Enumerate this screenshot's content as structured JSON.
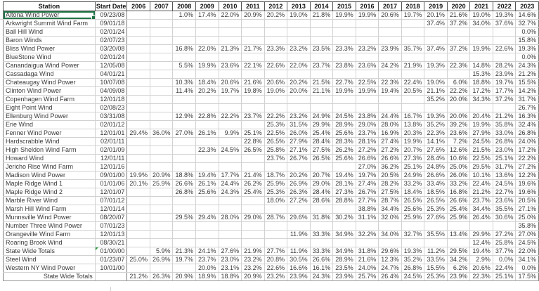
{
  "colors": {
    "selection_green": "#217346",
    "error_indicator_green": "#2e9e44",
    "grid_light": "#d2d2d2",
    "grid_dark": "#555555"
  },
  "table": {
    "columns": [
      "Station",
      "Start Date",
      "2006",
      "2007",
      "2008",
      "2009",
      "2010",
      "2011",
      "2012",
      "2013",
      "2014",
      "2015",
      "2016",
      "2017",
      "2018",
      "2019",
      "2020",
      "2021",
      "2022",
      "2023"
    ],
    "rows": [
      {
        "station": "Altona Wind Power",
        "start_date": "09/23/08",
        "selected": true,
        "values": [
          "",
          "",
          "1.0%",
          "17.4%",
          "22.0%",
          "20.9%",
          "20.2%",
          "19.0%",
          "21.8%",
          "19.9%",
          "19.9%",
          "20.6%",
          "19.7%",
          "20.1%",
          "21.6%",
          "19.0%",
          "19.3%",
          "14.6%"
        ]
      },
      {
        "station": "Arkwright Summit Wind Farm",
        "start_date": "09/01/18",
        "values": [
          "",
          "",
          "",
          "",
          "",
          "",
          "",
          "",
          "",
          "",
          "",
          "",
          "",
          "37.4%",
          "37.2%",
          "34.0%",
          "37.6%",
          "32.7%"
        ]
      },
      {
        "station": "Ball Hill Wind",
        "start_date": "02/01/24",
        "values": [
          "",
          "",
          "",
          "",
          "",
          "",
          "",
          "",
          "",
          "",
          "",
          "",
          "",
          "",
          "",
          "",
          "",
          "0.0%"
        ]
      },
      {
        "station": "Baron Winds",
        "start_date": "02/07/23",
        "values": [
          "",
          "",
          "",
          "",
          "",
          "",
          "",
          "",
          "",
          "",
          "",
          "",
          "",
          "",
          "",
          "",
          "",
          "15.8%"
        ]
      },
      {
        "station": "Bliss Wind Power",
        "start_date": "03/20/08",
        "values": [
          "",
          "",
          "16.8%",
          "22.0%",
          "21.3%",
          "21.7%",
          "23.3%",
          "23.2%",
          "23.5%",
          "23.3%",
          "23.2%",
          "23.9%",
          "35.7%",
          "37.4%",
          "37.2%",
          "19.9%",
          "22.6%",
          "19.3%"
        ]
      },
      {
        "station": "BlueStone Wind",
        "start_date": "02/01/24",
        "values": [
          "",
          "",
          "",
          "",
          "",
          "",
          "",
          "",
          "",
          "",
          "",
          "",
          "",
          "",
          "",
          "",
          "",
          "0.0%"
        ]
      },
      {
        "station": "Canandaigua Wind Power",
        "start_date": "12/05/08",
        "values": [
          "",
          "",
          "5.5%",
          "19.9%",
          "23.6%",
          "22.1%",
          "22.6%",
          "22.0%",
          "23.7%",
          "23.8%",
          "23.6%",
          "24.2%",
          "21.9%",
          "19.3%",
          "22.3%",
          "14.8%",
          "28.2%",
          "24.3%"
        ]
      },
      {
        "station": "Cassadaga Wind",
        "start_date": "04/01/21",
        "values": [
          "",
          "",
          "",
          "",
          "",
          "",
          "",
          "",
          "",
          "",
          "",
          "",
          "",
          "",
          "",
          "15.3%",
          "23.9%",
          "21.2%"
        ]
      },
      {
        "station": "Chateaugay Wind Power",
        "start_date": "10/07/08",
        "values": [
          "",
          "",
          "10.3%",
          "18.4%",
          "20.6%",
          "21.6%",
          "20.6%",
          "20.2%",
          "21.5%",
          "22.7%",
          "22.5%",
          "22.3%",
          "22.4%",
          "19.0%",
          "6.0%",
          "18.8%",
          "19.7%",
          "15.5%"
        ]
      },
      {
        "station": "Clinton Wind Power",
        "start_date": "04/09/08",
        "values": [
          "",
          "",
          "11.4%",
          "20.2%",
          "19.7%",
          "19.8%",
          "19.0%",
          "20.0%",
          "21.1%",
          "19.9%",
          "19.9%",
          "19.4%",
          "20.5%",
          "21.1%",
          "22.2%",
          "17.2%",
          "17.7%",
          "14.2%"
        ]
      },
      {
        "station": "Copenhagen Wind Farm",
        "start_date": "12/01/18",
        "values": [
          "",
          "",
          "",
          "",
          "",
          "",
          "",
          "",
          "",
          "",
          "",
          "",
          "",
          "35.2%",
          "20.0%",
          "34.3%",
          "37.2%",
          "31.7%"
        ]
      },
      {
        "station": "Eight Point Wind",
        "start_date": "02/08/23",
        "values": [
          "",
          "",
          "",
          "",
          "",
          "",
          "",
          "",
          "",
          "",
          "",
          "",
          "",
          "",
          "",
          "",
          "",
          "26.7%"
        ]
      },
      {
        "station": "Ellenburg Wind Power",
        "start_date": "03/31/08",
        "values": [
          "",
          "",
          "12.9%",
          "22.8%",
          "22.2%",
          "23.7%",
          "22.2%",
          "23.2%",
          "24.9%",
          "24.5%",
          "23.8%",
          "24.4%",
          "16.7%",
          "19.3%",
          "20.0%",
          "20.4%",
          "21.2%",
          "16.3%"
        ]
      },
      {
        "station": "Erie Wind",
        "start_date": "02/01/12",
        "values": [
          "",
          "",
          "",
          "",
          "",
          "",
          "25.3%",
          "31.5%",
          "29.9%",
          "28.9%",
          "29.0%",
          "28.0%",
          "13.8%",
          "35.2%",
          "39.2%",
          "19.9%",
          "35.8%",
          "32.4%"
        ]
      },
      {
        "station": "Fenner Wind Power",
        "start_date": "12/01/01",
        "values": [
          "29.4%",
          "36.0%",
          "27.0%",
          "26.1%",
          "9.9%",
          "25.1%",
          "22.5%",
          "26.0%",
          "25.4%",
          "25.6%",
          "23.7%",
          "16.9%",
          "20.3%",
          "22.3%",
          "23.6%",
          "27.9%",
          "33.0%",
          "26.8%"
        ]
      },
      {
        "station": "Hardscrabble Wind",
        "start_date": "02/01/11",
        "values": [
          "",
          "",
          "",
          "",
          "",
          "22.8%",
          "26.5%",
          "27.9%",
          "28.4%",
          "28.3%",
          "28.1%",
          "27.4%",
          "19.9%",
          "14.1%",
          "7.2%",
          "24.5%",
          "26.8%",
          "24.0%"
        ]
      },
      {
        "station": "High Sheldon Wind Farm",
        "start_date": "02/01/09",
        "values": [
          "",
          "",
          "",
          "22.3%",
          "24.5%",
          "26.5%",
          "25.8%",
          "27.1%",
          "27.5%",
          "26.2%",
          "27.2%",
          "27.2%",
          "20.7%",
          "27.6%",
          "12.6%",
          "21.5%",
          "23.0%",
          "17.2%"
        ]
      },
      {
        "station": "Howard Wind",
        "start_date": "12/01/11",
        "values": [
          "",
          "",
          "",
          "",
          "",
          "",
          "23.7%",
          "26.7%",
          "26.5%",
          "25.6%",
          "26.6%",
          "26.6%",
          "27.3%",
          "28.4%",
          "10.6%",
          "22.5%",
          "25.1%",
          "22.2%"
        ]
      },
      {
        "station": "Jericho Rise Wind Farm",
        "start_date": "12/01/16",
        "values": [
          "",
          "",
          "",
          "",
          "",
          "",
          "",
          "",
          "",
          "",
          "27.0%",
          "36.2%",
          "25.1%",
          "24.8%",
          "25.0%",
          "29.5%",
          "31.7%",
          "27.2%"
        ]
      },
      {
        "station": "Madison Wind Power",
        "start_date": "09/01/00",
        "values": [
          "19.9%",
          "20.9%",
          "18.8%",
          "19.4%",
          "17.7%",
          "21.4%",
          "18.7%",
          "20.2%",
          "20.7%",
          "19.4%",
          "19.7%",
          "20.5%",
          "24.9%",
          "26.6%",
          "26.0%",
          "10.1%",
          "13.6%",
          "12.2%"
        ]
      },
      {
        "station": "Maple Ridge Wind 1",
        "start_date": "01/01/06",
        "values": [
          "20.1%",
          "25.9%",
          "26.6%",
          "26.1%",
          "24.4%",
          "26.2%",
          "25.9%",
          "26.9%",
          "29.0%",
          "28.1%",
          "27.4%",
          "28.2%",
          "33.2%",
          "33.4%",
          "33.2%",
          "22.4%",
          "24.5%",
          "19.6%"
        ]
      },
      {
        "station": "Maple Ridge Wind 2",
        "start_date": "12/01/07",
        "values": [
          "",
          "",
          "26.8%",
          "25.6%",
          "24.3%",
          "25.4%",
          "25.3%",
          "26.3%",
          "28.4%",
          "27.3%",
          "26.7%",
          "27.5%",
          "18.4%",
          "18.5%",
          "16.8%",
          "21.2%",
          "22.7%",
          "19.6%"
        ]
      },
      {
        "station": "Marble River Wind",
        "start_date": "07/01/12",
        "values": [
          "",
          "",
          "",
          "",
          "",
          "",
          "18.0%",
          "27.2%",
          "28.6%",
          "28.8%",
          "27.7%",
          "28.7%",
          "26.5%",
          "26.5%",
          "26.6%",
          "23.7%",
          "23.6%",
          "20.5%"
        ]
      },
      {
        "station": "Marsh Hill Wind Farm",
        "start_date": "12/01/14",
        "values": [
          "",
          "",
          "",
          "",
          "",
          "",
          "",
          "",
          "",
          "",
          "38.8%",
          "34.4%",
          "25.6%",
          "25.3%",
          "25.4%",
          "34.4%",
          "35.5%",
          "27.1%"
        ]
      },
      {
        "station": "Munnsville Wind Power",
        "start_date": "08/20/07",
        "values": [
          "",
          "",
          "29.5%",
          "29.4%",
          "28.0%",
          "29.0%",
          "28.7%",
          "29.6%",
          "31.8%",
          "30.2%",
          "31.1%",
          "32.0%",
          "25.9%",
          "27.6%",
          "25.9%",
          "26.4%",
          "30.6%",
          "25.0%"
        ]
      },
      {
        "station": "Number Three Wind Power",
        "start_date": "07/01/23",
        "values": [
          "",
          "",
          "",
          "",
          "",
          "",
          "",
          "",
          "",
          "",
          "",
          "",
          "",
          "",
          "",
          "",
          "",
          "35.8%"
        ]
      },
      {
        "station": "Orangeville Wind Farm",
        "start_date": "12/01/13",
        "values": [
          "",
          "",
          "",
          "",
          "",
          "",
          "",
          "11.9%",
          "33.3%",
          "34.9%",
          "32.2%",
          "34.0%",
          "32.7%",
          "35.5%",
          "13.4%",
          "29.9%",
          "27.2%",
          "27.0%"
        ]
      },
      {
        "station": "Roaring Brook Wind",
        "start_date": "08/30/21",
        "values": [
          "",
          "",
          "",
          "",
          "",
          "",
          "",
          "",
          "",
          "",
          "",
          "",
          "",
          "",
          "",
          "12.4%",
          "25.8%",
          "24.5%"
        ]
      },
      {
        "station": "State Wide Totals",
        "start_date": "01/00/00",
        "error_flag": true,
        "values": [
          "",
          "5.9%",
          "21.3%",
          "24.1%",
          "27.6%",
          "21.9%",
          "27.7%",
          "11.9%",
          "33.3%",
          "34.9%",
          "31.8%",
          "29.6%",
          "19.3%",
          "11.2%",
          "29.5%",
          "19.4%",
          "37.7%",
          "22.0%"
        ]
      },
      {
        "station": "Steel Wind",
        "start_date": "01/23/07",
        "values": [
          "25.0%",
          "26.9%",
          "19.7%",
          "23.7%",
          "23.0%",
          "23.2%",
          "20.8%",
          "30.5%",
          "26.6%",
          "28.9%",
          "21.6%",
          "12.3%",
          "35.2%",
          "33.5%",
          "34.2%",
          "2.9%",
          "0.0%",
          "34.1%"
        ]
      },
      {
        "station": "Western NY Wind Power",
        "start_date": "10/01/00",
        "values": [
          "",
          "",
          "",
          "20.0%",
          "23.1%",
          "23.2%",
          "22.6%",
          "16.6%",
          "16.1%",
          "23.5%",
          "24.0%",
          "24.7%",
          "26.8%",
          "15.5%",
          "6.2%",
          "20.6%",
          "22.4%",
          "0.0%"
        ]
      },
      {
        "station": "State Wide Totals",
        "start_date": "",
        "footer": true,
        "values": [
          "21.2%",
          "26.3%",
          "20.9%",
          "18.9%",
          "18.8%",
          "20.9%",
          "23.2%",
          "23.9%",
          "24.3%",
          "23.9%",
          "25.7%",
          "26.4%",
          "24.5%",
          "25.3%",
          "23.9%",
          "22.3%",
          "25.1%",
          "17.5%"
        ]
      }
    ]
  }
}
